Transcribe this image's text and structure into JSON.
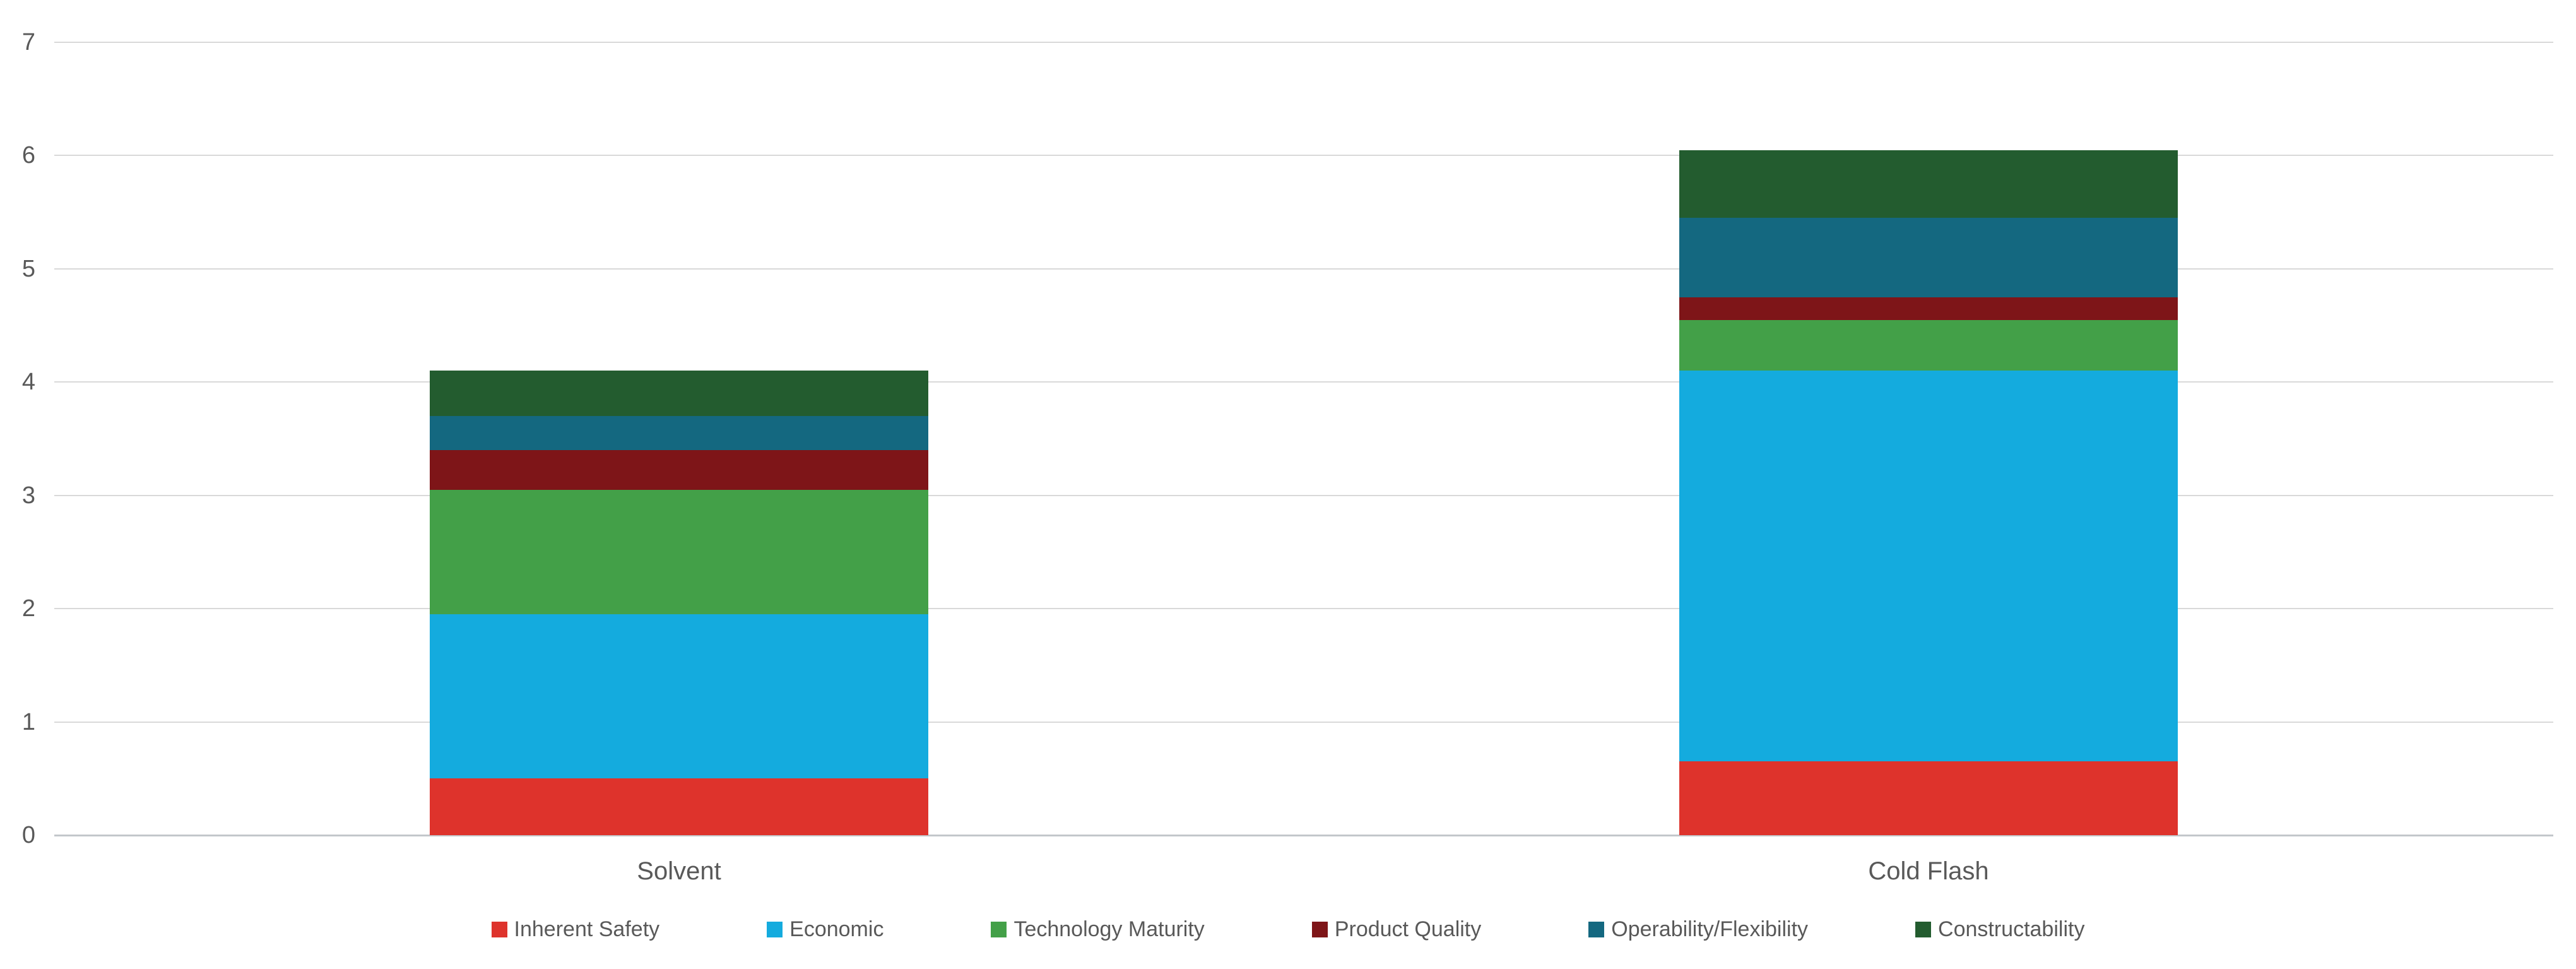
{
  "chart_data": {
    "type": "bar",
    "stacked": true,
    "title": "",
    "xlabel": "",
    "ylabel": "",
    "categories": [
      "Solvent",
      "Cold Flash"
    ],
    "series": [
      {
        "name": "Inherent Safety",
        "color": "#DE332C",
        "values": [
          0.5,
          0.65
        ]
      },
      {
        "name": "Economic",
        "color": "#14ABDE",
        "values": [
          1.45,
          3.45
        ]
      },
      {
        "name": "Technology Maturity",
        "color": "#43A048",
        "values": [
          1.1,
          0.45
        ]
      },
      {
        "name": "Product Quality",
        "color": "#7E1518",
        "values": [
          0.35,
          0.2
        ]
      },
      {
        "name": "Operability/Flexibility",
        "color": "#146880",
        "values": [
          0.3,
          0.7
        ]
      },
      {
        "name": "Constructability",
        "color": "#235C2F",
        "values": [
          0.4,
          0.6
        ]
      }
    ],
    "ylim": [
      0,
      7
    ],
    "yticks": [
      0,
      1,
      2,
      3,
      4,
      5,
      6,
      7
    ],
    "grid": true,
    "legend_position": "bottom",
    "colors": {
      "gridline": "#D9D9D9",
      "axisline": "#C3C7CB",
      "text": "#595959",
      "background": "#FFFFFF"
    }
  }
}
